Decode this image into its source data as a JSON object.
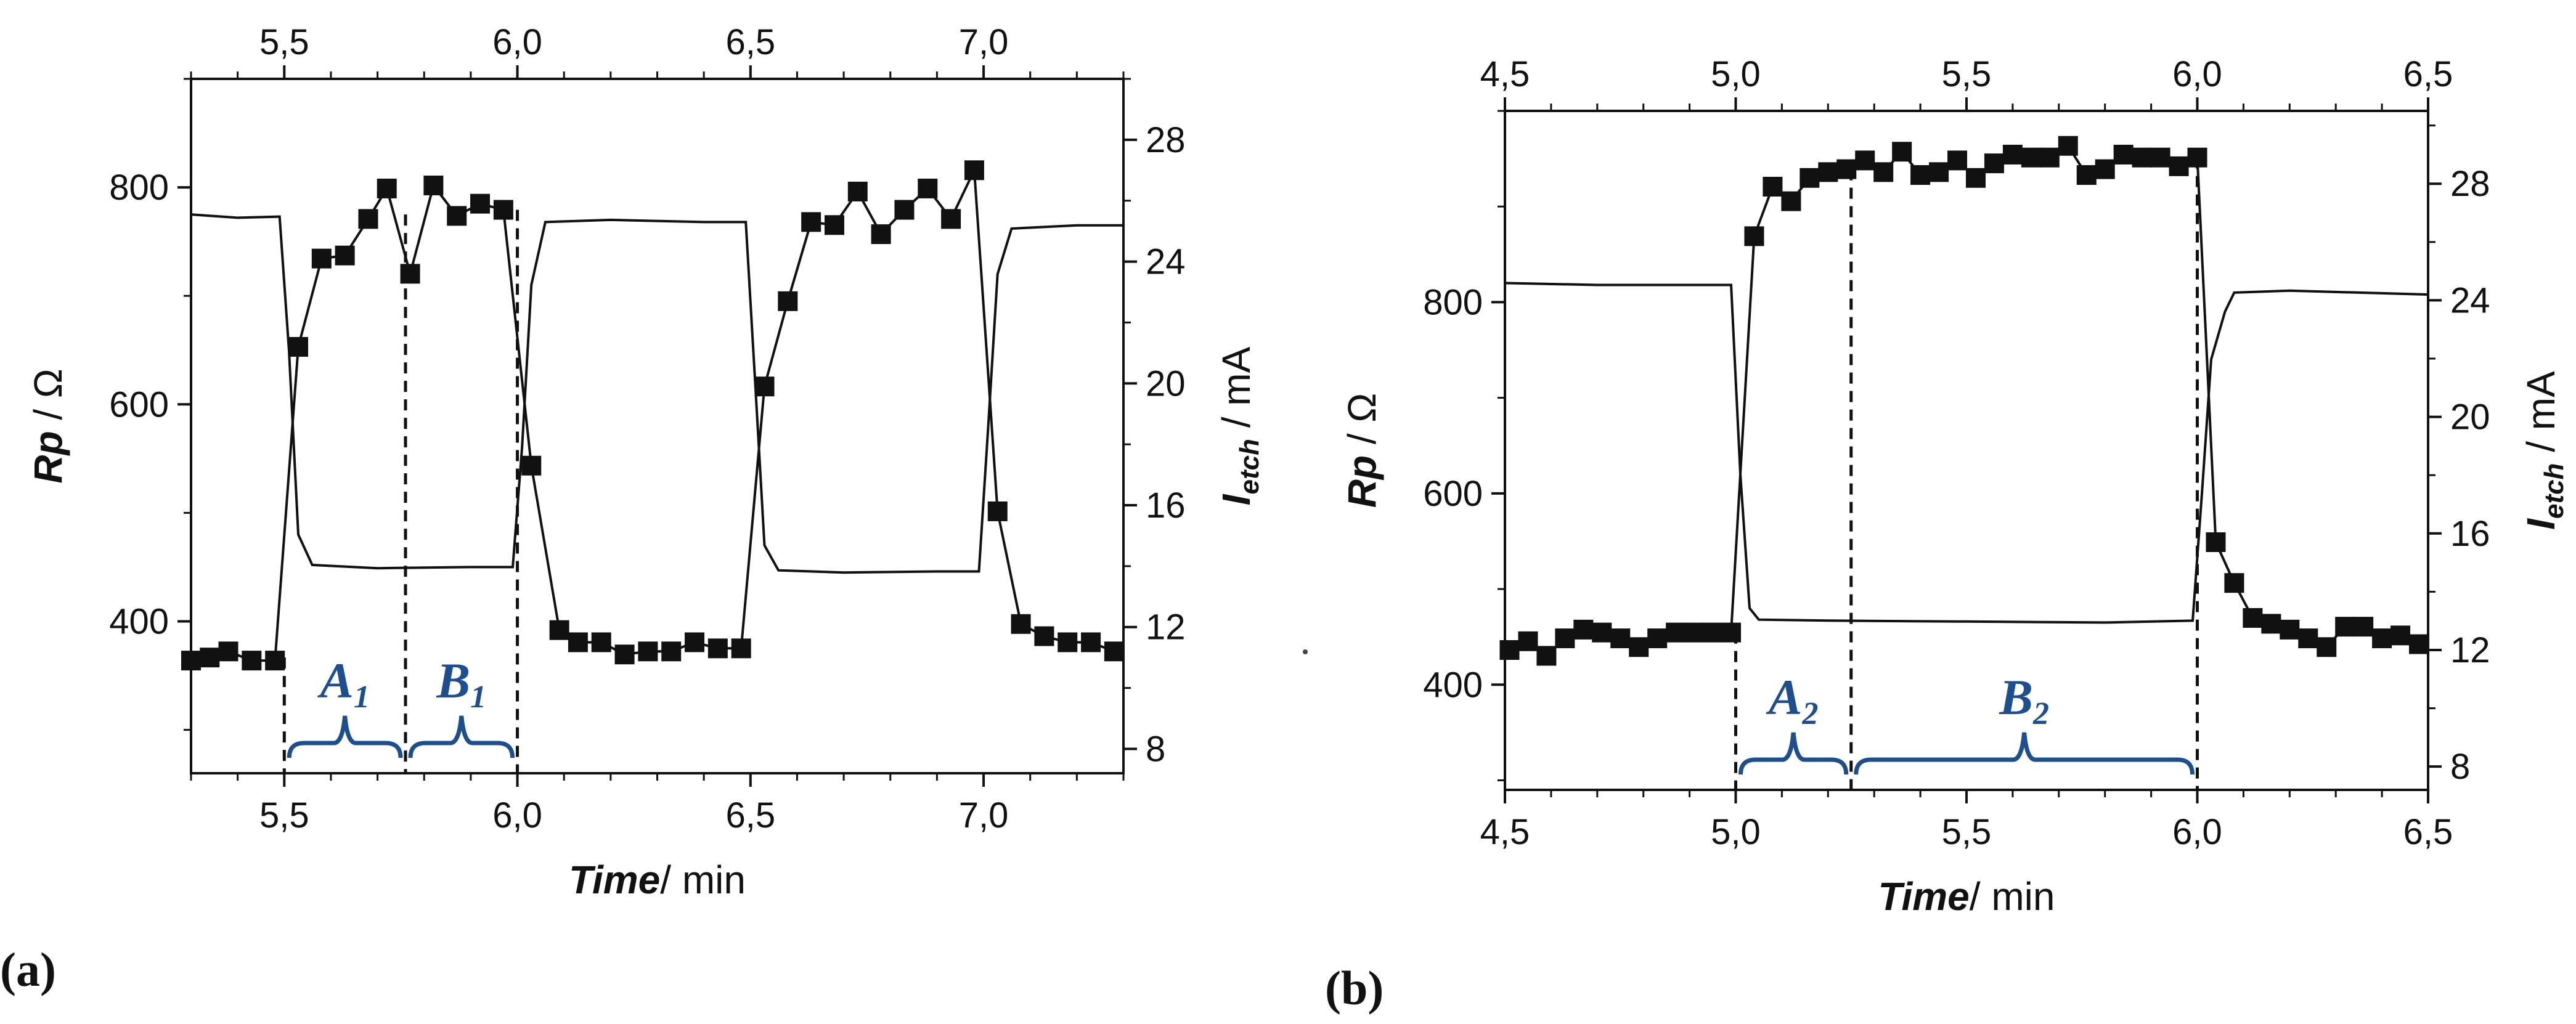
{
  "chart_data": [
    {
      "type": "line",
      "panel": "(a)",
      "xlabel_italic": "Time",
      "xlabel_rest": "/ min",
      "ylabel_left_italic": "Rp",
      "ylabel_left_rest": " / Ω",
      "ylabel_right_main": "I",
      "ylabel_right_sub": "etch",
      "ylabel_right_rest": " / mA",
      "xlim": [
        5.3,
        7.3
      ],
      "ylim_left": [
        260,
        900
      ],
      "ylim_right": [
        7.2,
        30.0
      ],
      "x_ticks": [
        5.5,
        6.0,
        6.5,
        7.0
      ],
      "x_tick_labels": [
        "5,5",
        "6,0",
        "6,5",
        "7,0"
      ],
      "y_left_ticks": [
        400,
        600,
        800
      ],
      "y_left_tick_labels": [
        "400",
        "600",
        "800"
      ],
      "y_right_ticks": [
        8,
        12,
        16,
        20,
        24,
        28
      ],
      "y_right_tick_labels": [
        "8",
        "12",
        "16",
        "20",
        "24",
        "28"
      ],
      "series": [
        {
          "name": "Iₑₜ꜀ₕ (squares)",
          "axis": "right",
          "marker": "square",
          "x": [
            5.3,
            5.34,
            5.38,
            5.43,
            5.48,
            5.53,
            5.58,
            5.63,
            5.68,
            5.72,
            5.77,
            5.82,
            5.87,
            5.92,
            5.97,
            6.03,
            6.09,
            6.13,
            6.18,
            6.23,
            6.28,
            6.33,
            6.38,
            6.43,
            6.48,
            6.53,
            6.58,
            6.63,
            6.68,
            6.73,
            6.78,
            6.83,
            6.88,
            6.93,
            6.98,
            7.03,
            7.08,
            7.13,
            7.18,
            7.23,
            7.28
          ],
          "values": [
            10.9,
            11.0,
            11.2,
            10.9,
            10.9,
            21.2,
            24.1,
            24.2,
            25.4,
            26.4,
            23.6,
            26.5,
            25.5,
            25.9,
            25.7,
            17.3,
            11.9,
            11.5,
            11.5,
            11.1,
            11.2,
            11.2,
            11.5,
            11.3,
            11.3,
            19.9,
            22.7,
            25.3,
            25.2,
            26.3,
            24.9,
            25.7,
            26.4,
            25.4,
            27.0,
            15.8,
            12.1,
            11.7,
            11.5,
            11.5,
            11.2
          ]
        },
        {
          "name": "Rp (solid line)",
          "axis": "left",
          "marker": "none",
          "x": [
            5.3,
            5.4,
            5.49,
            5.51,
            5.53,
            5.56,
            5.7,
            5.9,
            5.99,
            6.01,
            6.03,
            6.06,
            6.2,
            6.4,
            6.49,
            6.51,
            6.53,
            6.56,
            6.7,
            6.9,
            6.99,
            7.01,
            7.03,
            7.06,
            7.2,
            7.3
          ],
          "values": [
            775,
            772,
            773,
            650,
            480,
            452,
            449,
            450,
            450,
            560,
            710,
            768,
            770,
            768,
            768,
            620,
            470,
            447,
            445,
            446,
            446,
            580,
            720,
            762,
            765,
            765
          ]
        }
      ],
      "regions": [
        {
          "label": "A",
          "sub": "1",
          "from": 5.5,
          "to": 5.76
        },
        {
          "label": "B",
          "sub": "1",
          "from": 5.76,
          "to": 6.0
        }
      ],
      "dashed_lines_x": [
        5.5,
        5.76,
        6.0
      ]
    },
    {
      "type": "line",
      "panel": "(b)",
      "xlabel_italic": "Time",
      "xlabel_rest": "/ min",
      "ylabel_left_italic": "Rp",
      "ylabel_left_rest": " / Ω",
      "ylabel_right_main": "I",
      "ylabel_right_sub": "etch",
      "ylabel_right_rest": " / mA",
      "xlim": [
        4.5,
        6.5
      ],
      "ylim_left": [
        290,
        1000
      ],
      "ylim_right": [
        7.2,
        30.5
      ],
      "x_ticks": [
        4.5,
        5.0,
        5.5,
        6.0,
        6.5
      ],
      "x_tick_labels": [
        "4,5",
        "5,0",
        "5,5",
        "6,0",
        "6,5"
      ],
      "y_left_ticks": [
        400,
        600,
        800
      ],
      "y_left_tick_labels": [
        "400",
        "600",
        "800"
      ],
      "y_right_ticks": [
        8,
        12,
        16,
        20,
        24,
        28
      ],
      "y_right_tick_labels": [
        "8",
        "12",
        "16",
        "20",
        "24",
        "28"
      ],
      "series": [
        {
          "name": "Iₑₜ꜀ₕ (squares)",
          "axis": "right",
          "marker": "square",
          "x": [
            4.51,
            4.55,
            4.59,
            4.63,
            4.67,
            4.71,
            4.75,
            4.79,
            4.83,
            4.87,
            4.91,
            4.95,
            4.99,
            5.04,
            5.08,
            5.12,
            5.16,
            5.2,
            5.24,
            5.28,
            5.32,
            5.36,
            5.4,
            5.44,
            5.48,
            5.52,
            5.56,
            5.6,
            5.64,
            5.68,
            5.72,
            5.76,
            5.8,
            5.84,
            5.88,
            5.92,
            5.96,
            6.0,
            6.04,
            6.08,
            6.12,
            6.16,
            6.2,
            6.24,
            6.28,
            6.32,
            6.36,
            6.4,
            6.44,
            6.48
          ],
          "values": [
            12.0,
            12.3,
            11.8,
            12.4,
            12.7,
            12.6,
            12.4,
            12.1,
            12.4,
            12.6,
            12.6,
            12.6,
            12.6,
            26.2,
            27.9,
            27.4,
            28.2,
            28.4,
            28.5,
            28.8,
            28.4,
            29.1,
            28.3,
            28.4,
            28.8,
            28.2,
            28.7,
            29.0,
            28.9,
            28.9,
            29.3,
            28.3,
            28.5,
            29.0,
            28.9,
            28.9,
            28.6,
            28.9,
            15.7,
            14.3,
            13.1,
            12.9,
            12.7,
            12.4,
            12.1,
            12.8,
            12.8,
            12.4,
            12.5,
            12.2
          ]
        },
        {
          "name": "Rp (solid line)",
          "axis": "left",
          "marker": "none",
          "x": [
            4.5,
            4.7,
            4.99,
            5.01,
            5.03,
            5.05,
            5.2,
            5.5,
            5.8,
            5.99,
            6.01,
            6.03,
            6.06,
            6.08,
            6.2,
            6.5
          ],
          "values": [
            820,
            818,
            818,
            620,
            480,
            468,
            467,
            466,
            465,
            467,
            600,
            740,
            790,
            810,
            812,
            808
          ]
        }
      ],
      "regions": [
        {
          "label": "A",
          "sub": "2",
          "from": 5.0,
          "to": 5.25
        },
        {
          "label": "B",
          "sub": "2",
          "from": 5.25,
          "to": 6.0
        }
      ],
      "dashed_lines_x": [
        5.0,
        5.25,
        6.0
      ]
    }
  ]
}
